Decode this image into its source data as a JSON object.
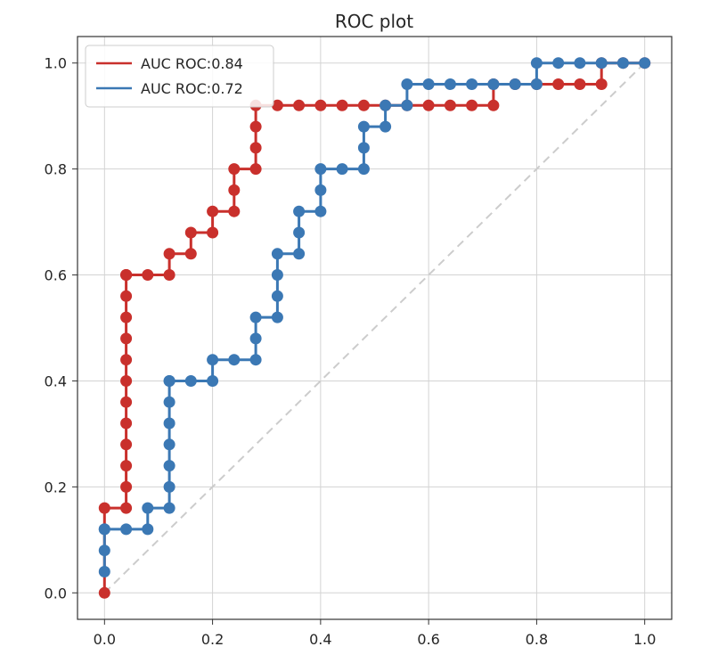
{
  "chart_data": {
    "type": "line",
    "title": "ROC plot",
    "xlabel": "",
    "ylabel": "",
    "xlim": [
      -0.05,
      1.05
    ],
    "ylim": [
      -0.05,
      1.05
    ],
    "x_ticks": [
      0.0,
      0.2,
      0.4,
      0.6,
      0.8,
      1.0
    ],
    "y_ticks": [
      0.0,
      0.2,
      0.4,
      0.6,
      0.8,
      1.0
    ],
    "x_tick_labels": [
      "0.0",
      "0.2",
      "0.4",
      "0.6",
      "0.8",
      "1.0"
    ],
    "y_tick_labels": [
      "0.0",
      "0.2",
      "0.4",
      "0.6",
      "0.8",
      "1.0"
    ],
    "grid": true,
    "legend_position": "top-left",
    "diagonal": {
      "x": [
        0,
        1
      ],
      "y": [
        0,
        1
      ],
      "color": "#cccccc",
      "style": "dashed"
    },
    "series": [
      {
        "name": "AUC ROC:0.84",
        "color": "#c9302c",
        "marker": "circle",
        "x": [
          0.0,
          0.0,
          0.04,
          0.04,
          0.04,
          0.04,
          0.04,
          0.04,
          0.04,
          0.04,
          0.04,
          0.04,
          0.04,
          0.04,
          0.04,
          0.04,
          0.08,
          0.12,
          0.12,
          0.16,
          0.16,
          0.2,
          0.2,
          0.24,
          0.24,
          0.24,
          0.28,
          0.28,
          0.28,
          0.28,
          0.32,
          0.36,
          0.4,
          0.44,
          0.48,
          0.52,
          0.56,
          0.6,
          0.64,
          0.68,
          0.72,
          0.72,
          0.76,
          0.8,
          0.84,
          0.88,
          0.92,
          0.92,
          0.96,
          1.0
        ],
        "y": [
          0.0,
          0.16,
          0.16,
          0.2,
          0.24,
          0.28,
          0.32,
          0.36,
          0.4,
          0.44,
          0.48,
          0.52,
          0.56,
          0.6,
          0.6,
          0.6,
          0.6,
          0.6,
          0.64,
          0.64,
          0.68,
          0.68,
          0.72,
          0.72,
          0.76,
          0.8,
          0.8,
          0.84,
          0.88,
          0.92,
          0.92,
          0.92,
          0.92,
          0.92,
          0.92,
          0.92,
          0.92,
          0.92,
          0.92,
          0.92,
          0.92,
          0.96,
          0.96,
          0.96,
          0.96,
          0.96,
          0.96,
          1.0,
          1.0,
          1.0
        ]
      },
      {
        "name": "AUC ROC:0.72",
        "color": "#3b78b4",
        "marker": "circle",
        "x": [
          0.0,
          0.0,
          0.0,
          0.0,
          0.04,
          0.08,
          0.08,
          0.12,
          0.12,
          0.12,
          0.12,
          0.12,
          0.12,
          0.12,
          0.12,
          0.16,
          0.2,
          0.2,
          0.24,
          0.28,
          0.28,
          0.28,
          0.32,
          0.32,
          0.32,
          0.32,
          0.36,
          0.36,
          0.36,
          0.4,
          0.4,
          0.4,
          0.44,
          0.48,
          0.48,
          0.48,
          0.52,
          0.52,
          0.56,
          0.56,
          0.6,
          0.64,
          0.68,
          0.72,
          0.76,
          0.8,
          0.8,
          0.84,
          0.88,
          0.92,
          0.96,
          1.0
        ],
        "y": [
          0.04,
          0.08,
          0.12,
          0.12,
          0.12,
          0.12,
          0.16,
          0.16,
          0.2,
          0.24,
          0.28,
          0.32,
          0.36,
          0.4,
          0.4,
          0.4,
          0.4,
          0.44,
          0.44,
          0.44,
          0.48,
          0.52,
          0.52,
          0.56,
          0.6,
          0.64,
          0.64,
          0.68,
          0.72,
          0.72,
          0.76,
          0.8,
          0.8,
          0.8,
          0.84,
          0.88,
          0.88,
          0.92,
          0.92,
          0.96,
          0.96,
          0.96,
          0.96,
          0.96,
          0.96,
          0.96,
          1.0,
          1.0,
          1.0,
          1.0,
          1.0,
          1.0
        ]
      }
    ]
  }
}
